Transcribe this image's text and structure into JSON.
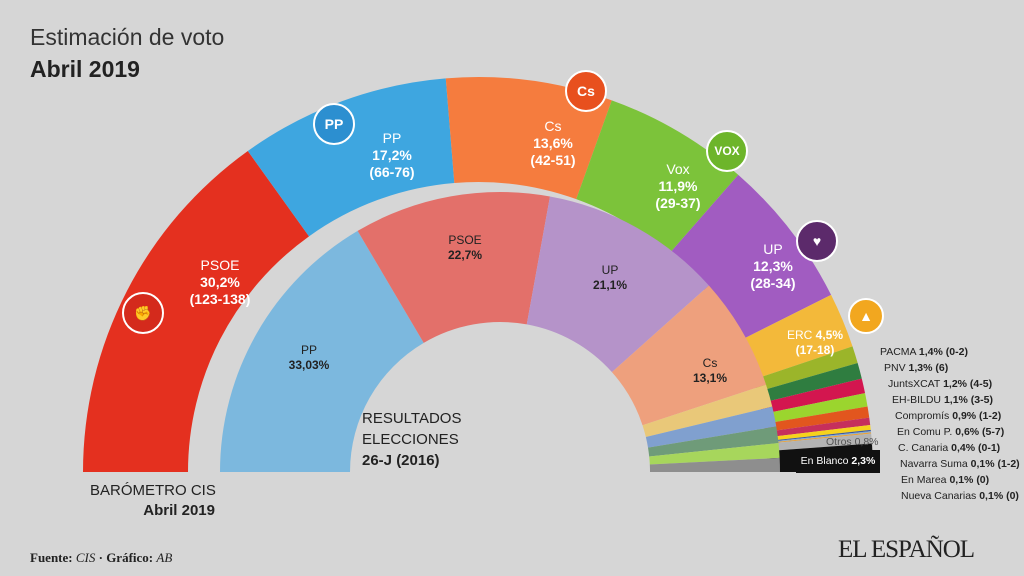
{
  "header": {
    "title": "Estimación de voto",
    "subtitle": "Abril 2019"
  },
  "footer": {
    "source_label": "Fuente:",
    "source": "CIS",
    "graphic_label": "· Gráfico:",
    "graphic": "AB",
    "brand": "EL ESPAÑOL"
  },
  "chart_data": [
    {
      "type": "pie",
      "shape": "semicircle-donut",
      "title": "BARÓMETRO CIS",
      "subtitle": "Abril 2019",
      "series": [
        {
          "name": "PSOE",
          "value": 30.2,
          "seats": "(123-138)",
          "color": "#e4301f"
        },
        {
          "name": "PP",
          "value": 17.2,
          "seats": "(66-76)",
          "color": "#3ea6e0"
        },
        {
          "name": "Cs",
          "value": 13.6,
          "seats": "(42-51)",
          "color": "#f57c3e"
        },
        {
          "name": "Vox",
          "value": 11.9,
          "seats": "(29-37)",
          "color": "#7cc33a"
        },
        {
          "name": "UP",
          "value": 12.3,
          "seats": "(28-34)",
          "color": "#a15cc1"
        },
        {
          "name": "ERC",
          "value": 4.5,
          "seats": "(17-18)",
          "color": "#f3b93a"
        },
        {
          "name": "PACMA",
          "value": 1.4,
          "seats": "(0-2)",
          "color": "#9bb52a"
        },
        {
          "name": "PNV",
          "value": 1.3,
          "seats": "(6)",
          "color": "#2f7d40"
        },
        {
          "name": "JuntsXCAT",
          "value": 1.2,
          "seats": "(4-5)",
          "color": "#d3164f"
        },
        {
          "name": "EH-BILDU",
          "value": 1.1,
          "seats": "(3-5)",
          "color": "#9bd52e"
        },
        {
          "name": "Compromís",
          "value": 0.9,
          "seats": "(1-2)",
          "color": "#e2561e"
        },
        {
          "name": "En Comu P.",
          "value": 0.6,
          "seats": "(5-7)",
          "color": "#c62f5c"
        },
        {
          "name": "C. Canaria",
          "value": 0.4,
          "seats": "(0-1)",
          "color": "#f6d21c"
        },
        {
          "name": "Navarra Suma",
          "value": 0.1,
          "seats": "(1-2)",
          "color": "#3b58a0"
        },
        {
          "name": "En Marea",
          "value": 0.1,
          "seats": "(0)",
          "color": "#86acd2"
        },
        {
          "name": "Nueva Canarias",
          "value": 0.1,
          "seats": "(0)",
          "color": "#e9a23a"
        },
        {
          "name": "Otros",
          "value": 0.8,
          "seats": "",
          "color": "#b3b3b3"
        },
        {
          "name": "En Blanco",
          "value": 2.3,
          "seats": "",
          "color": "#111111"
        }
      ]
    },
    {
      "type": "pie",
      "shape": "semicircle-donut",
      "title": "RESULTADOS ELECCIONES",
      "subtitle": "26-J (2016)",
      "series": [
        {
          "name": "PP",
          "value": 33.03,
          "color": "#7cb8de"
        },
        {
          "name": "PSOE",
          "value": 22.7,
          "color": "#e3706a"
        },
        {
          "name": "UP",
          "value": 21.1,
          "color": "#b593c9"
        },
        {
          "name": "Cs",
          "value": 13.1,
          "color": "#eea07d"
        },
        {
          "name": "",
          "value": 2.6,
          "color": "#e9c879"
        },
        {
          "name": "",
          "value": 2.3,
          "color": "#80a0cf"
        },
        {
          "name": "",
          "value": 1.9,
          "color": "#6f9b79"
        },
        {
          "name": "",
          "value": 1.7,
          "color": "#a7d65c"
        },
        {
          "name": "",
          "value": 1.6,
          "color": "#8e8e8e"
        }
      ]
    }
  ]
}
